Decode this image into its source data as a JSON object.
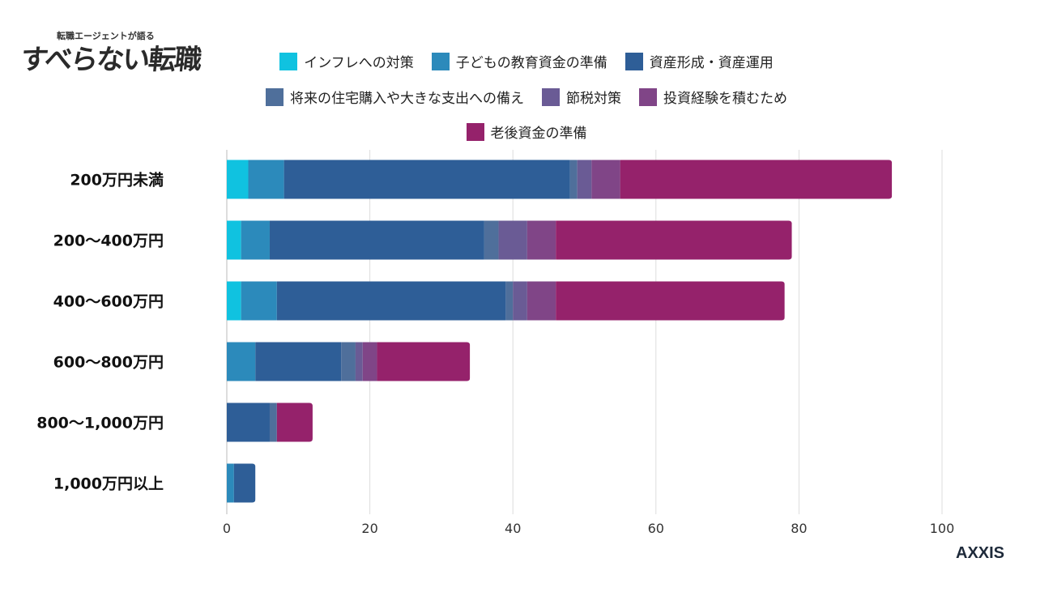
{
  "logo": {
    "small": "転職エージェントが語る",
    "big": "すべらない転職"
  },
  "brand": "AXXIS",
  "chart_data": {
    "type": "bar",
    "orientation": "horizontal",
    "stacked": true,
    "categories": [
      "200万円未満",
      "200〜400万円",
      "400〜600万円",
      "600〜800万円",
      "800〜1,000万円",
      "1,000万円以上"
    ],
    "series": [
      {
        "name": "インフレへの対策",
        "color": "#10c2e0",
        "values": [
          3,
          2,
          2,
          0,
          0,
          0
        ]
      },
      {
        "name": "子どもの教育資金の準備",
        "color": "#2c8abb",
        "values": [
          5,
          4,
          5,
          4,
          0,
          1
        ]
      },
      {
        "name": "資産形成・資産運用",
        "color": "#2e5e97",
        "values": [
          40,
          30,
          32,
          12,
          6,
          3
        ]
      },
      {
        "name": "将来の住宅購入や大きな支出への備え",
        "color": "#4f6f9b",
        "values": [
          1,
          2,
          1,
          2,
          1,
          0
        ]
      },
      {
        "name": "節税対策",
        "color": "#6a5b95",
        "values": [
          2,
          4,
          2,
          1,
          0,
          0
        ]
      },
      {
        "name": "投資経験を積むため",
        "color": "#804587",
        "values": [
          4,
          4,
          4,
          2,
          0,
          0
        ]
      },
      {
        "name": "老後資金の準備",
        "color": "#95226b",
        "values": [
          38,
          33,
          32,
          13,
          5,
          0
        ]
      }
    ],
    "xlim": [
      0,
      100
    ],
    "xticks": [
      0,
      20,
      40,
      60,
      80,
      100
    ],
    "grid": true,
    "legend": "top"
  }
}
